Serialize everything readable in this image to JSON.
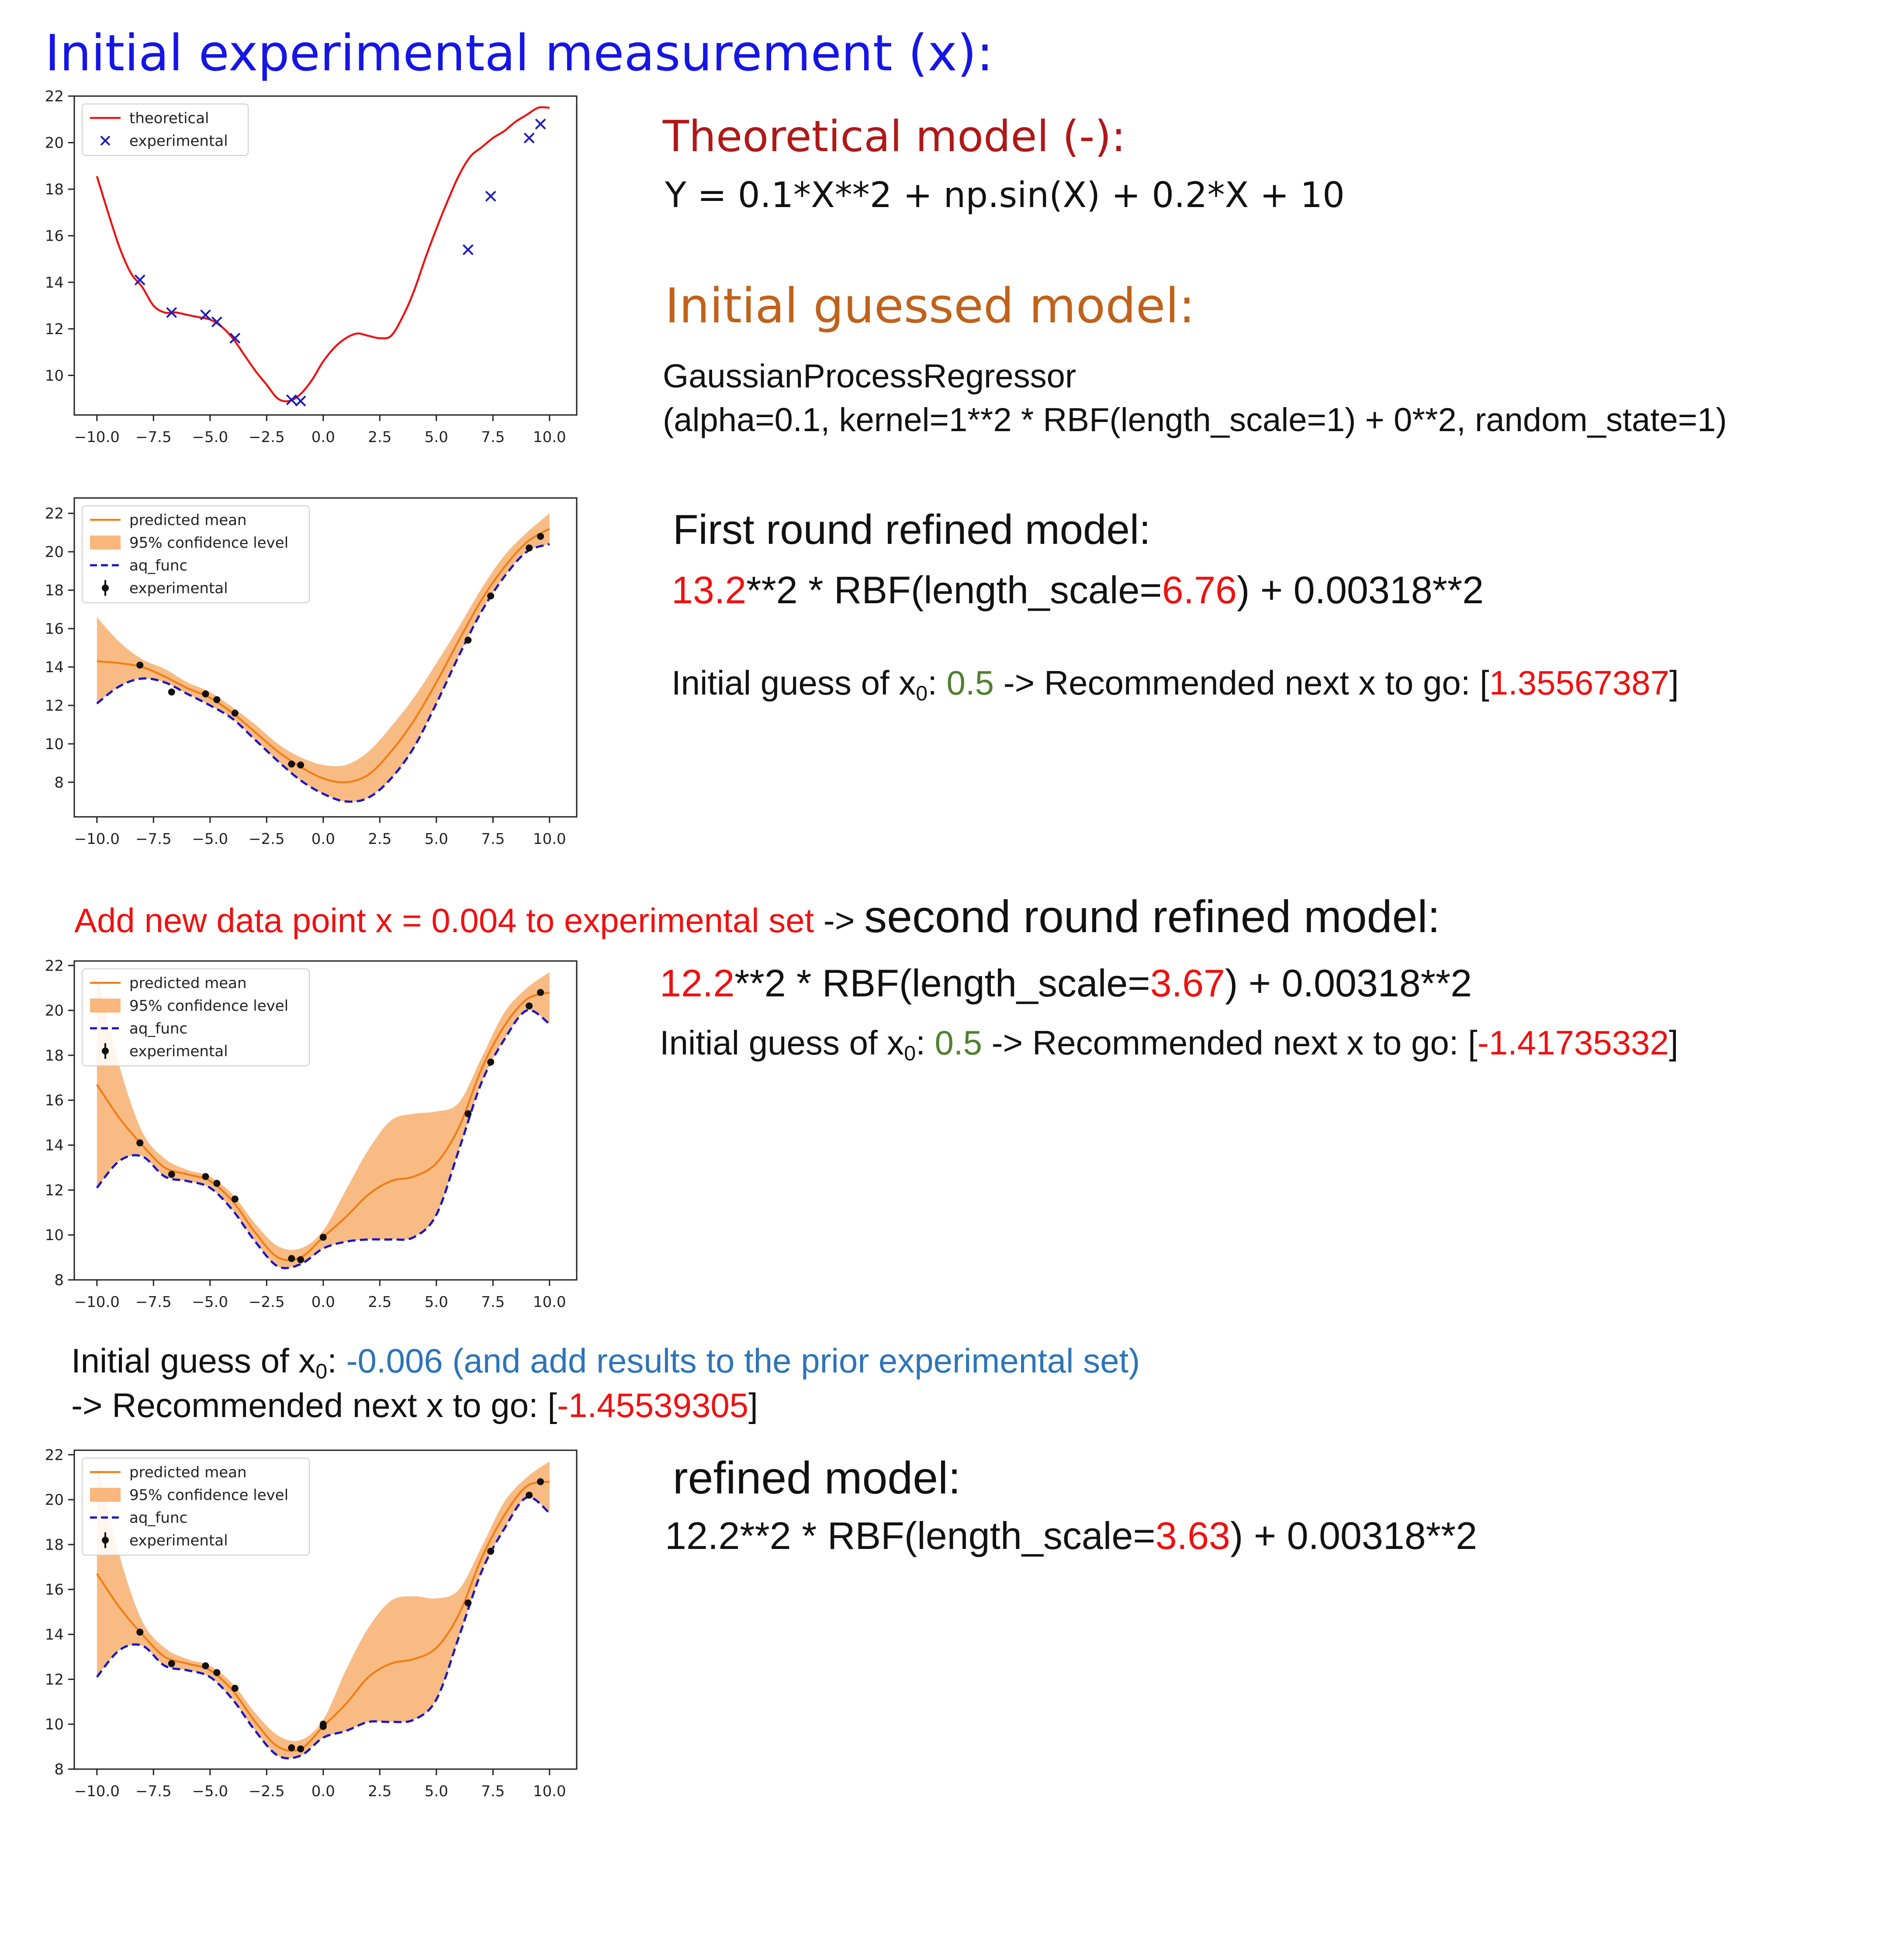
{
  "page": {
    "title": "Initial experimental measurement (x):",
    "theory_heading": "Theoretical model (-):",
    "theory_equation": "Y = 0.1*X**2 + np.sin(X) + 0.2*X + 10",
    "guess_heading": "Initial guessed model:",
    "gpr_name": "GaussianProcessRegressor",
    "gpr_args": "(alpha=0.1, kernel=1**2 * RBF(length_scale=1) + 0**2, random_state=1)",
    "first": {
      "heading": "First round refined model:",
      "kernel_a": "13.2",
      "kernel_b": "**2 * RBF(length_scale=",
      "kernel_c": "6.76",
      "kernel_d": ") + 0.00318**2",
      "guess_a": "Initial guess of x",
      "guess_sub": "0",
      "guess_b": ": ",
      "guess_val": "0.5",
      "guess_c": " -> Recommended next x to go: [",
      "rec_val": "1.35567387",
      "guess_d": "]"
    },
    "add": {
      "red_text": "Add new data point x = 0.004 to experimental set",
      "arrow": " -> ",
      "heading": "second round refined model:"
    },
    "second": {
      "kernel_a": "12.2",
      "kernel_b": "**2 * RBF(length_scale=",
      "kernel_c": "3.67",
      "kernel_d": ") + 0.00318**2",
      "guess_a": "Initial guess of x",
      "guess_sub": "0",
      "guess_b": ": ",
      "guess_val": "0.5",
      "guess_c": " -> Recommended next x to go: [",
      "rec_val": "-1.41735332",
      "guess_d": "]"
    },
    "third": {
      "guess_a": "Initial guess of x",
      "guess_sub": "0",
      "guess_b": ": ",
      "guess_val": "-0.006 (and add results to the prior experimental set)",
      "line2_a": "-> Recommended next x to go: [",
      "rec_val": "-1.45539305",
      "line2_b": "]"
    },
    "refined": {
      "heading": "refined model:",
      "kernel_a": "12.2**2 * RBF(length_scale=",
      "kernel_c": "3.63",
      "kernel_d": ") + 0.00318**2"
    }
  },
  "chart_data": [
    {
      "type": "line",
      "xlim": [
        -11,
        11.2
      ],
      "ylim": [
        8.3,
        22
      ],
      "xticks": [
        -10,
        -7.5,
        -5,
        -2.5,
        0,
        2.5,
        5,
        7.5,
        10
      ],
      "xtick_labels": [
        "−10.0",
        "−7.5",
        "−5.0",
        "−2.5",
        "0.0",
        "2.5",
        "5.0",
        "7.5",
        "10.0"
      ],
      "yticks": [
        10,
        12,
        14,
        16,
        18,
        20,
        22
      ],
      "ytick_labels": [
        "10",
        "12",
        "14",
        "16",
        "18",
        "20",
        "22"
      ],
      "legend": {
        "position": "top-left",
        "entries": [
          "theoretical",
          "experimental"
        ]
      },
      "colors": {
        "theoretical": "#ee1111",
        "experimental": "#1a1ab8"
      },
      "series": [
        {
          "name": "theoretical",
          "kind": "line",
          "x": [
            -10,
            -9.5,
            -9,
            -8.5,
            -8,
            -7.5,
            -7,
            -6.5,
            -6,
            -5.5,
            -5,
            -4.5,
            -4,
            -3.5,
            -3,
            -2.5,
            -2,
            -1.5,
            -1,
            -0.5,
            0,
            0.5,
            1,
            1.5,
            2,
            2.5,
            3,
            3.5,
            4,
            4.5,
            5,
            5.5,
            6,
            6.5,
            7,
            7.5,
            8,
            8.5,
            9,
            9.5,
            10
          ],
          "y": [
            18.56,
            16.98,
            15.5,
            14.4,
            13.8,
            13.0,
            12.7,
            12.7,
            12.6,
            12.5,
            12.4,
            12.1,
            11.6,
            10.9,
            10.2,
            9.6,
            9.0,
            8.9,
            9.2,
            9.8,
            10.6,
            11.2,
            11.6,
            11.8,
            11.7,
            11.6,
            11.7,
            12.5,
            13.6,
            15.0,
            16.3,
            17.5,
            18.6,
            19.4,
            19.8,
            20.2,
            20.5,
            20.9,
            21.2,
            21.5,
            21.5
          ]
        },
        {
          "name": "experimental",
          "kind": "marker-x",
          "x": [
            -8.1,
            -6.7,
            -5.2,
            -4.7,
            -3.9,
            -1.4,
            -1.0,
            6.4,
            7.4,
            9.1,
            9.6
          ],
          "y": [
            14.1,
            12.7,
            12.6,
            12.3,
            11.6,
            8.95,
            8.9,
            15.4,
            17.7,
            20.2,
            20.8
          ]
        }
      ]
    },
    {
      "type": "area",
      "xlim": [
        -11,
        11.2
      ],
      "ylim": [
        6.2,
        22.8
      ],
      "xticks": [
        -10,
        -7.5,
        -5,
        -2.5,
        0,
        2.5,
        5,
        7.5,
        10
      ],
      "xtick_labels": [
        "−10.0",
        "−7.5",
        "−5.0",
        "−2.5",
        "0.0",
        "2.5",
        "5.0",
        "7.5",
        "10.0"
      ],
      "yticks": [
        8,
        10,
        12,
        14,
        16,
        18,
        20,
        22
      ],
      "ytick_labels": [
        "8",
        "10",
        "12",
        "14",
        "16",
        "18",
        "20",
        "22"
      ],
      "legend": {
        "position": "top-left",
        "entries": [
          "predicted mean",
          "95% confidence level",
          "aq_func",
          "experimental"
        ]
      },
      "colors": {
        "mean": "#f07f16",
        "band": "#f9b77d",
        "aq": "#1616cc",
        "points": "#111111"
      },
      "series": [
        {
          "name": "predicted mean",
          "kind": "line",
          "x": [
            -10,
            -9,
            -8,
            -7,
            -6,
            -5,
            -4,
            -3,
            -2,
            -1,
            0,
            1,
            2,
            3,
            4,
            5,
            6,
            7,
            8,
            9,
            10
          ],
          "y": [
            14.3,
            14.2,
            14.0,
            13.5,
            12.9,
            12.4,
            11.6,
            10.6,
            9.6,
            8.8,
            8.2,
            8.0,
            8.4,
            9.6,
            11.2,
            13.2,
            15.4,
            17.5,
            19.2,
            20.5,
            21.2
          ]
        },
        {
          "name": "95% confidence level",
          "kind": "band",
          "x": [
            -10,
            -9,
            -8,
            -7,
            -6,
            -5,
            -4,
            -3,
            -2,
            -1,
            0,
            1,
            2,
            3,
            4,
            5,
            6,
            7,
            8,
            9,
            10
          ],
          "upper": [
            16.6,
            15.3,
            14.4,
            13.9,
            13.2,
            12.7,
            11.9,
            11.0,
            10.0,
            9.3,
            8.9,
            8.9,
            9.6,
            10.9,
            12.4,
            14.2,
            16.1,
            18.1,
            19.8,
            21.0,
            22.0
          ],
          "lower": [
            12.1,
            13.0,
            13.4,
            13.2,
            12.6,
            12.0,
            11.3,
            10.2,
            9.1,
            8.1,
            7.4,
            7.0,
            7.2,
            8.2,
            9.8,
            12.1,
            14.6,
            16.9,
            18.7,
            20.0,
            20.4
          ]
        },
        {
          "name": "aq_func",
          "kind": "dashed",
          "x": [
            -10,
            -9,
            -8,
            -7,
            -6,
            -5,
            -4,
            -3,
            -2,
            -1,
            0,
            1,
            2,
            3,
            4,
            5,
            6,
            7,
            8,
            9,
            10
          ],
          "y": [
            12.1,
            13.0,
            13.4,
            13.2,
            12.6,
            12.0,
            11.3,
            10.2,
            9.1,
            8.1,
            7.4,
            7.0,
            7.2,
            8.2,
            9.8,
            12.1,
            14.6,
            16.9,
            18.7,
            20.0,
            20.4
          ]
        },
        {
          "name": "experimental",
          "kind": "points",
          "x": [
            -8.1,
            -6.7,
            -5.2,
            -4.7,
            -3.9,
            -1.4,
            -1.0,
            6.4,
            7.4,
            9.1,
            9.6
          ],
          "y": [
            14.1,
            12.7,
            12.6,
            12.3,
            11.6,
            8.95,
            8.9,
            15.4,
            17.7,
            20.2,
            20.8
          ]
        }
      ]
    },
    {
      "type": "area",
      "xlim": [
        -11,
        11.2
      ],
      "ylim": [
        8,
        22.2
      ],
      "xticks": [
        -10,
        -7.5,
        -5,
        -2.5,
        0,
        2.5,
        5,
        7.5,
        10
      ],
      "xtick_labels": [
        "−10.0",
        "−7.5",
        "−5.0",
        "−2.5",
        "0.0",
        "2.5",
        "5.0",
        "7.5",
        "10.0"
      ],
      "yticks": [
        8,
        10,
        12,
        14,
        16,
        18,
        20,
        22
      ],
      "ytick_labels": [
        "8",
        "10",
        "12",
        "14",
        "16",
        "18",
        "20",
        "22"
      ],
      "legend": {
        "position": "top-left",
        "entries": [
          "predicted mean",
          "95% confidence level",
          "aq_func",
          "experimental"
        ]
      },
      "colors": {
        "mean": "#f07f16",
        "band": "#f9b77d",
        "aq": "#1616cc",
        "points": "#111111"
      },
      "series": [
        {
          "name": "predicted mean",
          "kind": "line",
          "x": [
            -10,
            -9,
            -8,
            -7,
            -6,
            -5,
            -4,
            -3,
            -2,
            -1,
            0,
            1,
            2,
            3,
            4,
            5,
            6,
            7,
            8,
            9,
            10
          ],
          "y": [
            16.7,
            15.2,
            14.0,
            13.0,
            12.7,
            12.4,
            11.5,
            10.1,
            9.0,
            9.0,
            9.9,
            10.8,
            11.8,
            12.4,
            12.6,
            13.2,
            14.8,
            17.4,
            19.3,
            20.5,
            20.8
          ]
        },
        {
          "name": "95% confidence level",
          "kind": "band",
          "x": [
            -10,
            -9,
            -8,
            -7,
            -6,
            -5,
            -4,
            -3,
            -2,
            -1,
            0,
            1,
            2,
            3,
            4,
            5,
            6,
            7,
            8,
            9,
            10
          ],
          "upper": [
            21.5,
            17.5,
            14.6,
            13.4,
            12.9,
            12.6,
            11.8,
            10.5,
            9.5,
            9.4,
            10.2,
            12.0,
            13.8,
            15.1,
            15.4,
            15.5,
            15.9,
            17.9,
            19.9,
            21.0,
            21.7
          ],
          "lower": [
            12.1,
            13.3,
            13.5,
            12.6,
            12.4,
            12.1,
            11.1,
            9.7,
            8.6,
            8.7,
            9.4,
            9.7,
            9.8,
            9.8,
            9.9,
            10.9,
            13.8,
            16.8,
            18.7,
            20.0,
            19.4
          ]
        },
        {
          "name": "aq_func",
          "kind": "dashed",
          "x": [
            -10,
            -9,
            -8,
            -7,
            -6,
            -5,
            -4,
            -3,
            -2,
            -1,
            0,
            1,
            2,
            3,
            4,
            5,
            6,
            7,
            8,
            9,
            10
          ],
          "y": [
            12.1,
            13.3,
            13.5,
            12.6,
            12.4,
            12.1,
            11.1,
            9.7,
            8.6,
            8.7,
            9.4,
            9.7,
            9.8,
            9.8,
            9.9,
            10.9,
            13.8,
            16.8,
            18.7,
            20.0,
            19.4
          ]
        },
        {
          "name": "experimental",
          "kind": "points",
          "x": [
            -8.1,
            -6.7,
            -5.2,
            -4.7,
            -3.9,
            -1.4,
            -1.0,
            0.0,
            6.4,
            7.4,
            9.1,
            9.6
          ],
          "y": [
            14.1,
            12.7,
            12.6,
            12.3,
            11.6,
            8.95,
            8.9,
            9.9,
            15.4,
            17.7,
            20.2,
            20.8
          ]
        }
      ]
    },
    {
      "type": "area",
      "xlim": [
        -11,
        11.2
      ],
      "ylim": [
        8,
        22.2
      ],
      "xticks": [
        -10,
        -7.5,
        -5,
        -2.5,
        0,
        2.5,
        5,
        7.5,
        10
      ],
      "xtick_labels": [
        "−10.0",
        "−7.5",
        "−5.0",
        "−2.5",
        "0.0",
        "2.5",
        "5.0",
        "7.5",
        "10.0"
      ],
      "yticks": [
        8,
        10,
        12,
        14,
        16,
        18,
        20,
        22
      ],
      "ytick_labels": [
        "8",
        "10",
        "12",
        "14",
        "16",
        "18",
        "20",
        "22"
      ],
      "legend": {
        "position": "top-left",
        "entries": [
          "predicted mean",
          "95% confidence level",
          "aq_func",
          "experimental"
        ]
      },
      "colors": {
        "mean": "#f07f16",
        "band": "#f9b77d",
        "aq": "#1616cc",
        "points": "#111111"
      },
      "series": [
        {
          "name": "predicted mean",
          "kind": "line",
          "x": [
            -10,
            -9,
            -8,
            -7,
            -6,
            -5,
            -4,
            -3,
            -2,
            -1,
            0,
            1,
            2,
            3,
            4,
            5,
            6,
            7,
            8,
            9,
            10
          ],
          "y": [
            16.7,
            15.2,
            14.0,
            13.0,
            12.7,
            12.4,
            11.5,
            10.1,
            9.0,
            8.9,
            9.9,
            10.9,
            12.1,
            12.7,
            12.9,
            13.4,
            14.9,
            17.4,
            19.3,
            20.6,
            20.8
          ]
        },
        {
          "name": "95% confidence level",
          "kind": "band",
          "x": [
            -10,
            -9,
            -8,
            -7,
            -6,
            -5,
            -4,
            -3,
            -2,
            -1,
            0,
            1,
            2,
            3,
            4,
            5,
            6,
            7,
            8,
            9,
            10
          ],
          "upper": [
            21.6,
            17.5,
            14.6,
            13.4,
            12.9,
            12.6,
            11.8,
            10.5,
            9.5,
            9.3,
            10.2,
            12.4,
            14.3,
            15.5,
            15.7,
            15.6,
            16.0,
            17.9,
            19.9,
            21.0,
            21.7
          ],
          "lower": [
            12.1,
            13.3,
            13.5,
            12.6,
            12.4,
            12.1,
            11.1,
            9.7,
            8.6,
            8.6,
            9.4,
            9.7,
            10.1,
            10.1,
            10.2,
            11.1,
            13.9,
            16.8,
            18.7,
            20.1,
            19.4
          ]
        },
        {
          "name": "aq_func",
          "kind": "dashed",
          "x": [
            -10,
            -9,
            -8,
            -7,
            -6,
            -5,
            -4,
            -3,
            -2,
            -1,
            0,
            1,
            2,
            3,
            4,
            5,
            6,
            7,
            8,
            9,
            10
          ],
          "y": [
            12.1,
            13.3,
            13.5,
            12.6,
            12.4,
            12.1,
            11.1,
            9.7,
            8.6,
            8.6,
            9.4,
            9.7,
            10.1,
            10.1,
            10.2,
            11.1,
            13.9,
            16.8,
            18.7,
            20.1,
            19.4
          ]
        },
        {
          "name": "experimental",
          "kind": "points",
          "x": [
            -8.1,
            -6.7,
            -5.2,
            -4.7,
            -3.9,
            -1.4,
            -1.0,
            0.0,
            0.0,
            6.4,
            7.4,
            9.1,
            9.6
          ],
          "y": [
            14.1,
            12.7,
            12.6,
            12.3,
            11.6,
            8.95,
            8.9,
            9.9,
            10.0,
            15.4,
            17.7,
            20.2,
            20.8
          ]
        }
      ]
    }
  ]
}
